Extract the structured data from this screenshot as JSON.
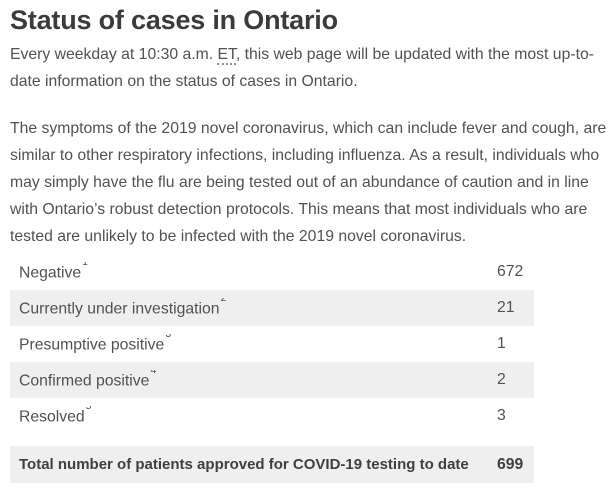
{
  "colors": {
    "heading_text": "#3b3b3d",
    "body_text": "#515153",
    "table_stripe": "#efefef",
    "background": "#ffffff"
  },
  "heading": {
    "title": "Status of cases in Ontario"
  },
  "intro": {
    "text_before_abbr": "Every weekday at 10:30 a.m. ",
    "abbr": "ET",
    "text_after_abbr": ", this web page will be updated with the most up-to-date information on the status of cases in Ontario."
  },
  "description": {
    "text": "The symptoms of the 2019 novel coronavirus, which can include fever and cough, are similar to other respiratory infections, including influenza. As a result, individuals who may simply have the flu are being tested out of an abundance of caution and in line with Ontario’s robust detection protocols. This means that most individuals who are tested are unlikely to be infected with the 2019 novel coronavirus."
  },
  "cases_table": {
    "rows": [
      {
        "label": "Negative",
        "footnote_ref": "1",
        "value": "672"
      },
      {
        "label": "Currently under investigation",
        "footnote_ref": "2",
        "value": "21"
      },
      {
        "label": "Presumptive positive",
        "footnote_ref": "3",
        "value": "1"
      },
      {
        "label": "Confirmed positive",
        "footnote_ref": "4",
        "value": "2"
      },
      {
        "label": "Resolved",
        "footnote_ref": "5",
        "value": "3"
      }
    ],
    "total_row": {
      "label": "Total number of patients approved for COVID-19 testing to date",
      "value": "699"
    }
  }
}
